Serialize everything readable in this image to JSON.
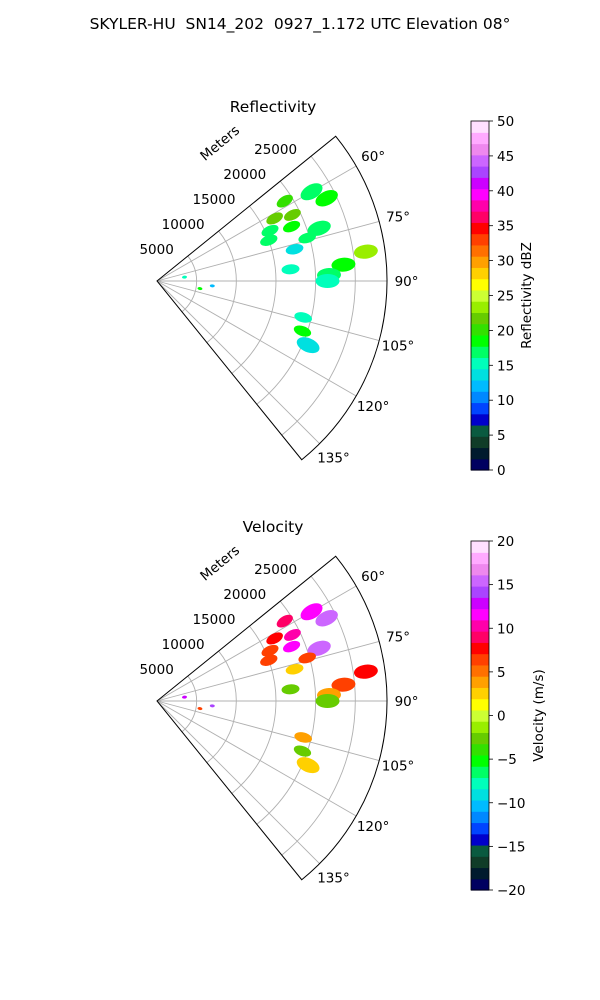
{
  "figure_title": "SKYLER-HU  SN14_202  0927_1.172 UTC Elevation 08°",
  "colors": {
    "grid": "#b0b0b0",
    "frame": "#000000",
    "reflectivity_cmap": [
      "#000060",
      "#001a2e",
      "#103c28",
      "#0a5a40",
      "#0000cc",
      "#0044ff",
      "#0088ff",
      "#00bbff",
      "#00e0e0",
      "#00ffbb",
      "#00ff66",
      "#00ff00",
      "#33e000",
      "#66cc00",
      "#99ee00",
      "#ccff33",
      "#ffff00",
      "#ffd000",
      "#ffa000",
      "#ff7000",
      "#ff4000",
      "#ff0000",
      "#ff0066",
      "#ff00aa",
      "#ff00ff",
      "#cc00ff",
      "#aa44ff",
      "#cc66ff",
      "#ee88ee",
      "#ffaaff",
      "#ffe0ff"
    ],
    "velocity_cmap": [
      "#000060",
      "#001a2e",
      "#103c28",
      "#0a5a40",
      "#0000cc",
      "#0044ff",
      "#0088ff",
      "#00bbff",
      "#00e0e0",
      "#00ffbb",
      "#00ff66",
      "#00ff00",
      "#33e000",
      "#66cc00",
      "#99ee00",
      "#ccff33",
      "#ffff00",
      "#ffd000",
      "#ffa000",
      "#ff7000",
      "#ff4000",
      "#ff0000",
      "#ff0066",
      "#ff00aa",
      "#ff00ff",
      "#cc00ff",
      "#aa44ff",
      "#cc66ff",
      "#ee88ee",
      "#ffaaff",
      "#ffe0ff"
    ]
  },
  "chart_data": [
    {
      "type": "heatmap",
      "projection": "polar-sector",
      "title": "Reflectivity",
      "range_axis_label": "Meters",
      "range_ticks": [
        5000,
        10000,
        15000,
        20000,
        25000
      ],
      "range_max": 29000,
      "azimuth_range_deg": [
        51,
        141
      ],
      "azimuth_ticks_deg": [
        60,
        75,
        90,
        105,
        120,
        135
      ],
      "azimuth_tick_labels": [
        "60°",
        "75°",
        "90°",
        "105°",
        "120°",
        "135°"
      ],
      "colorbar": {
        "label": "Reflectivity dBZ",
        "min": 0,
        "max": 50,
        "ticks": [
          "0",
          "5",
          "10",
          "15",
          "20",
          "25",
          "30",
          "35",
          "40",
          "45",
          "50"
        ]
      },
      "echoes": [
        {
          "az": 58,
          "r": 19000,
          "value": 20
        },
        {
          "az": 60,
          "r": 22500,
          "value": 17
        },
        {
          "az": 62,
          "r": 16800,
          "value": 21
        },
        {
          "az": 64,
          "r": 19000,
          "value": 22
        },
        {
          "az": 64,
          "r": 23800,
          "value": 19
        },
        {
          "az": 66,
          "r": 15600,
          "value": 17
        },
        {
          "az": 68,
          "r": 18300,
          "value": 18
        },
        {
          "az": 70,
          "r": 15000,
          "value": 17
        },
        {
          "az": 72,
          "r": 21500,
          "value": 17
        },
        {
          "az": 74,
          "r": 19700,
          "value": 17
        },
        {
          "az": 77,
          "r": 17800,
          "value": 14
        },
        {
          "az": 82,
          "r": 26600,
          "value": 23
        },
        {
          "az": 85,
          "r": 23600,
          "value": 19
        },
        {
          "az": 85,
          "r": 16900,
          "value": 16
        },
        {
          "az": 88,
          "r": 21700,
          "value": 17
        },
        {
          "az": 90,
          "r": 21500,
          "value": 15
        },
        {
          "az": 95,
          "r": 7000,
          "value": 12
        },
        {
          "az": 104,
          "r": 19000,
          "value": 15
        },
        {
          "az": 109,
          "r": 19400,
          "value": 18
        },
        {
          "az": 113,
          "r": 20700,
          "value": 14
        },
        {
          "az": 82,
          "r": 3500,
          "value": 16
        },
        {
          "az": 100,
          "r": 5500,
          "value": 18
        }
      ]
    },
    {
      "type": "heatmap",
      "projection": "polar-sector",
      "title": "Velocity",
      "range_axis_label": "Meters",
      "range_ticks": [
        5000,
        10000,
        15000,
        20000,
        25000
      ],
      "range_max": 29000,
      "azimuth_range_deg": [
        51,
        141
      ],
      "azimuth_ticks_deg": [
        60,
        75,
        90,
        105,
        120,
        135
      ],
      "azimuth_tick_labels": [
        "60°",
        "75°",
        "90°",
        "105°",
        "120°",
        "135°"
      ],
      "colorbar": {
        "label": "Velocity (m/s)",
        "min": -20,
        "max": 20,
        "ticks": [
          "−20",
          "−15",
          "−10",
          "−5",
          "0",
          "5",
          "10",
          "15",
          "20"
        ]
      },
      "echoes": [
        {
          "az": 58,
          "r": 19000,
          "value": 9
        },
        {
          "az": 60,
          "r": 22500,
          "value": 12
        },
        {
          "az": 62,
          "r": 16800,
          "value": 8
        },
        {
          "az": 64,
          "r": 19000,
          "value": 10
        },
        {
          "az": 64,
          "r": 23800,
          "value": 15
        },
        {
          "az": 66,
          "r": 15600,
          "value": 7
        },
        {
          "az": 68,
          "r": 18300,
          "value": 11
        },
        {
          "az": 70,
          "r": 15000,
          "value": 6
        },
        {
          "az": 72,
          "r": 21500,
          "value": 16
        },
        {
          "az": 74,
          "r": 19700,
          "value": 7
        },
        {
          "az": 77,
          "r": 17800,
          "value": 3
        },
        {
          "az": 82,
          "r": 26600,
          "value": 8
        },
        {
          "az": 85,
          "r": 23600,
          "value": 7
        },
        {
          "az": 85,
          "r": 16900,
          "value": -3
        },
        {
          "az": 88,
          "r": 21700,
          "value": 4
        },
        {
          "az": 90,
          "r": 21500,
          "value": -2
        },
        {
          "az": 95,
          "r": 7000,
          "value": 14
        },
        {
          "az": 104,
          "r": 19000,
          "value": 4
        },
        {
          "az": 109,
          "r": 19400,
          "value": -3
        },
        {
          "az": 113,
          "r": 20700,
          "value": 2
        },
        {
          "az": 82,
          "r": 3500,
          "value": 13
        },
        {
          "az": 100,
          "r": 5500,
          "value": 6
        }
      ]
    }
  ]
}
